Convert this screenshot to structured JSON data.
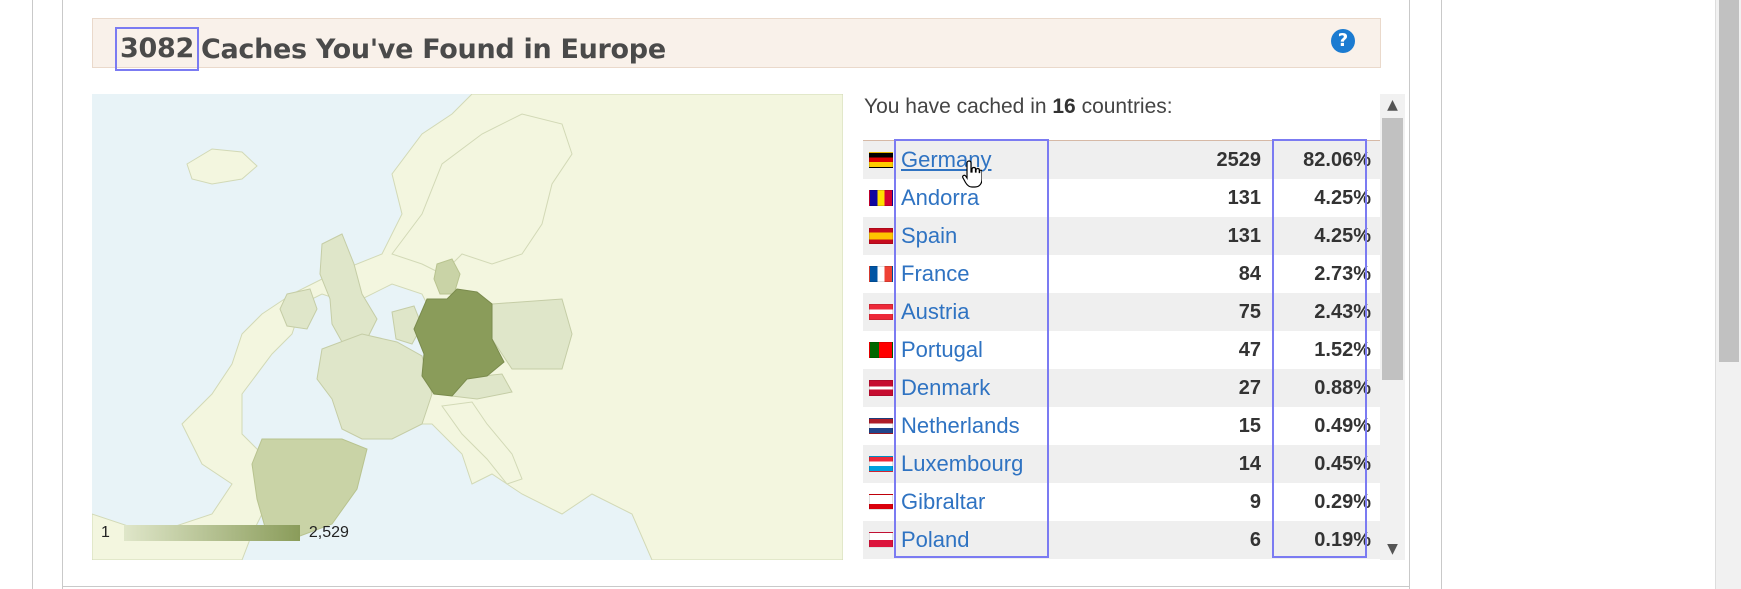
{
  "header": {
    "count": "3082",
    "title_rest": "Caches You've Found in Europe",
    "help_glyph": "?"
  },
  "map": {
    "legend_min": "1",
    "legend_max": "2,529",
    "colors": {
      "sea": "#e8f3f7",
      "land": "#f3f6df",
      "low": "#dfe6c9",
      "mid": "#c9d3a6",
      "high": "#8a9c5a"
    }
  },
  "summary": {
    "prefix": "You have cached in ",
    "count": "16",
    "suffix": " countries:"
  },
  "countries": [
    {
      "name": "Germany",
      "count": "2529",
      "pct": "82.06%",
      "flag": "de"
    },
    {
      "name": "Andorra",
      "count": "131",
      "pct": "4.25%",
      "flag": "ad"
    },
    {
      "name": "Spain",
      "count": "131",
      "pct": "4.25%",
      "flag": "es"
    },
    {
      "name": "France",
      "count": "84",
      "pct": "2.73%",
      "flag": "fr"
    },
    {
      "name": "Austria",
      "count": "75",
      "pct": "2.43%",
      "flag": "at"
    },
    {
      "name": "Portugal",
      "count": "47",
      "pct": "1.52%",
      "flag": "pt"
    },
    {
      "name": "Denmark",
      "count": "27",
      "pct": "0.88%",
      "flag": "dk"
    },
    {
      "name": "Netherlands",
      "count": "15",
      "pct": "0.49%",
      "flag": "nl"
    },
    {
      "name": "Luxembourg",
      "count": "14",
      "pct": "0.45%",
      "flag": "lu"
    },
    {
      "name": "Gibraltar",
      "count": "9",
      "pct": "0.29%",
      "flag": "gi"
    },
    {
      "name": "Poland",
      "count": "6",
      "pct": "0.19%",
      "flag": "pl"
    }
  ]
}
